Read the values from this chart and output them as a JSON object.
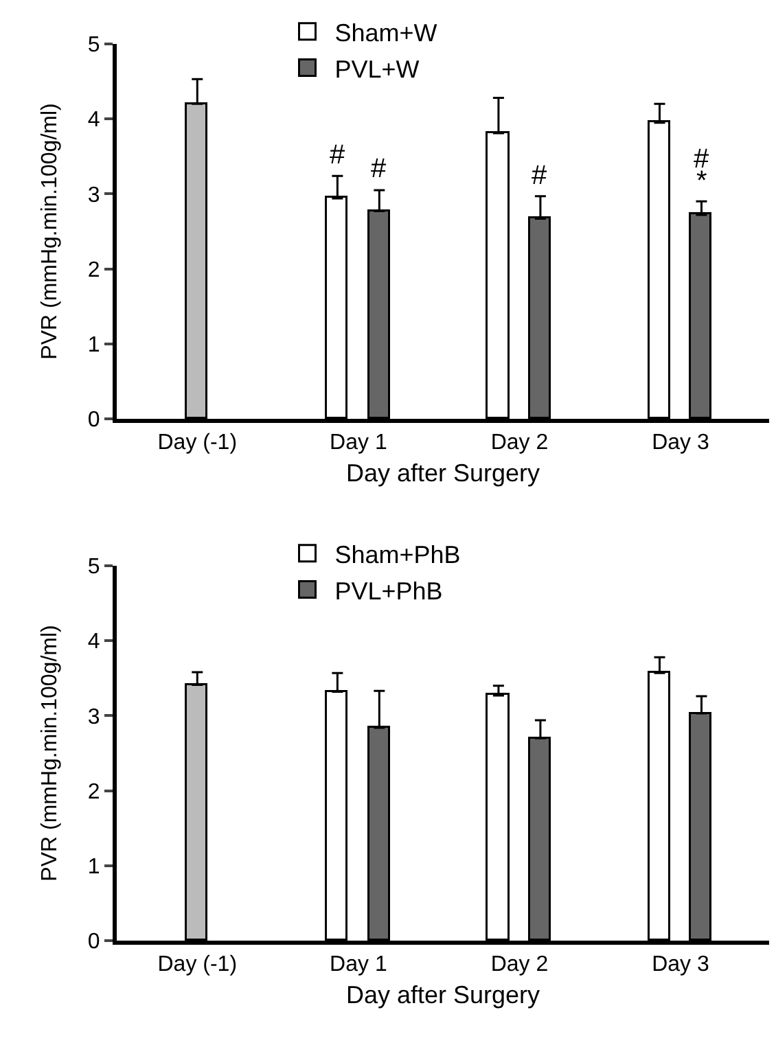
{
  "chart_data": [
    {
      "type": "bar",
      "categories": [
        "Day (-1)",
        "Day 1",
        "Day 2",
        "Day 3"
      ],
      "xlabel": "Day after Surgery",
      "ylabel": "PVR (mmHg.min.100g/ml)",
      "ylim": [
        0,
        5
      ],
      "yticks": [
        0,
        1,
        2,
        3,
        4,
        5
      ],
      "grid": false,
      "legend": "top",
      "series": [
        {
          "color": "#bbbbbb",
          "values": [
            4.2,
            null,
            null,
            null
          ],
          "errors": [
            [
              4.2,
              4.53
            ],
            null,
            null,
            null
          ]
        },
        {
          "name": "Sham+W",
          "color": "#ffffff",
          "values": [
            null,
            2.94,
            3.81,
            3.95
          ],
          "errors": [
            null,
            [
              2.94,
              3.24
            ],
            [
              3.81,
              4.28
            ],
            [
              3.95,
              4.2
            ]
          ]
        },
        {
          "name": "PVL+W",
          "color": "#666666",
          "values": [
            null,
            2.77,
            2.67,
            2.72
          ],
          "errors": [
            null,
            [
              2.77,
              3.05
            ],
            [
              2.67,
              2.97
            ],
            [
              2.72,
              2.9
            ]
          ]
        }
      ],
      "annotations": [
        "#",
        "#",
        "#",
        "*",
        "#"
      ]
    },
    {
      "type": "bar",
      "categories": [
        "Day (-1)",
        "Day 1",
        "Day 2",
        "Day 3"
      ],
      "xlabel": "Day after Surgery",
      "ylabel": "PVR (mmHg.min.100g/ml)",
      "ylim": [
        0,
        5
      ],
      "yticks": [
        0,
        1,
        2,
        3,
        4,
        5
      ],
      "grid": false,
      "legend": "top",
      "series": [
        {
          "color": "#bbbbbb",
          "values": [
            3.41,
            null,
            null,
            null
          ],
          "errors": [
            [
              3.41,
              3.58
            ],
            null,
            null,
            null
          ]
        },
        {
          "name": "Sham+PhB",
          "color": "#ffffff",
          "values": [
            null,
            3.32,
            3.27,
            3.57
          ],
          "errors": [
            null,
            [
              3.32,
              3.57
            ],
            [
              3.27,
              3.4
            ],
            [
              3.57,
              3.78
            ]
          ]
        },
        {
          "name": "PVL+PhB",
          "color": "#666666",
          "values": [
            null,
            2.84,
            2.7,
            3.03
          ],
          "errors": [
            null,
            [
              2.84,
              3.33
            ],
            [
              2.7,
              2.94
            ],
            [
              3.03,
              3.26
            ]
          ]
        }
      ]
    }
  ]
}
